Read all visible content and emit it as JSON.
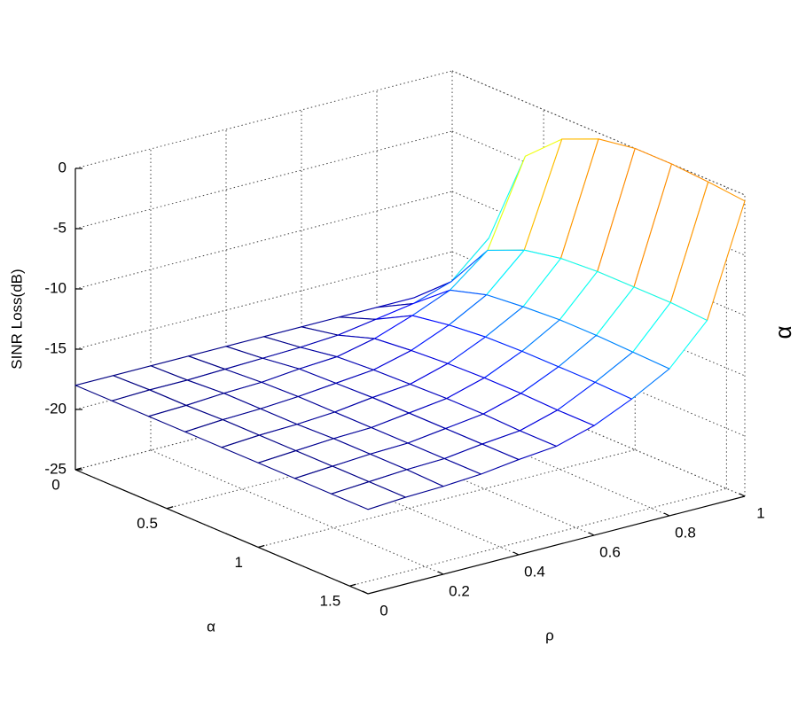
{
  "chart_data": {
    "type": "mesh",
    "zlabel": "SINR Loss(dB)",
    "alpha_label": "α",
    "rho_label": "ρ",
    "annotation": "α",
    "alpha": [
      0,
      0.2,
      0.4,
      0.6,
      0.8,
      1.0,
      1.2,
      1.4,
      1.6
    ],
    "rho": [
      0,
      0.1,
      0.2,
      0.3,
      0.4,
      0.5,
      0.6,
      0.7,
      0.8,
      0.9,
      1
    ],
    "z": [
      [
        -18,
        -18,
        -18,
        -18,
        -18,
        -18,
        -18,
        -18,
        -18,
        -18,
        -18
      ],
      [
        -18,
        -17.9,
        -17.9,
        -17.8,
        -17.7,
        -17.6,
        -17.4,
        -16.9,
        -16.4,
        -15.4,
        -12.6
      ],
      [
        -18,
        -17.9,
        -17.7,
        -17.6,
        -17.3,
        -17.1,
        -16.4,
        -15.3,
        -14.0,
        -11.5,
        -4.5
      ],
      [
        -18,
        -17.8,
        -17.7,
        -17.5,
        -17.2,
        -16.9,
        -16.1,
        -14.8,
        -13.1,
        -10.2,
        -1.8
      ],
      [
        -18,
        -17.8,
        -17.7,
        -17.5,
        -17.1,
        -16.8,
        -15.9,
        -14.5,
        -12.8,
        -9.6,
        -0.5
      ],
      [
        -18,
        -17.8,
        -17.6,
        -17.5,
        -17.1,
        -16.7,
        -15.8,
        -14.4,
        -12.6,
        -9.4,
        0
      ],
      [
        -18,
        -17.8,
        -17.6,
        -17.5,
        -17.1,
        -16.7,
        -15.8,
        -14.4,
        -12.6,
        -9.4,
        0
      ],
      [
        -18,
        -17.8,
        -17.6,
        -17.5,
        -17.1,
        -16.8,
        -15.9,
        -14.4,
        -12.7,
        -9.4,
        -0.2
      ],
      [
        -18,
        -17.8,
        -17.7,
        -17.5,
        -17.1,
        -16.8,
        -15.9,
        -14.5,
        -12.8,
        -9.6,
        -0.5
      ]
    ],
    "alim": [
      0,
      1.6
    ],
    "rholim": [
      0,
      1
    ],
    "zlim": [
      -25,
      0
    ],
    "aticks": [
      0,
      0.5,
      1,
      1.5
    ],
    "rhoticks": [
      0,
      0.2,
      0.4,
      0.6,
      0.8,
      1
    ],
    "zticks": [
      -25,
      -20,
      -15,
      -10,
      -5,
      0
    ],
    "grid": true,
    "colormap": "jet"
  }
}
